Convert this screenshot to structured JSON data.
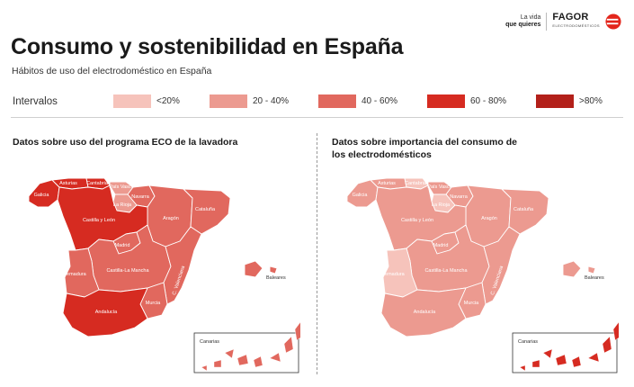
{
  "brand": {
    "tagline_line1": "La vida",
    "tagline_line2": "que quieres",
    "name": "FAGOR",
    "sub": "ELECTRODOMÉSTICOS"
  },
  "header": {
    "title": "Consumo y sostenibilidad en España",
    "subtitle": "Hábitos de uso del electrodoméstico en España"
  },
  "legend": {
    "label": "Intervalos",
    "items": [
      {
        "label": "<20%",
        "color": "#f6c3bb"
      },
      {
        "label": "20 - 40%",
        "color": "#ec9a90"
      },
      {
        "label": "40 - 60%",
        "color": "#e1685e"
      },
      {
        "label": "60 - 80%",
        "color": "#d62b21"
      },
      {
        "label": ">80%",
        "color": "#b3201a"
      }
    ]
  },
  "regions": {
    "galicia": "Galicia",
    "asturias": "Asturias",
    "cantabria": "Cantabria",
    "pais_vasco": "País Vasco",
    "navarra": "Navarra",
    "la_rioja": "La Rioja",
    "aragon": "Aragón",
    "cataluna": "Cataluña",
    "castilla_leon": "Castilla y León",
    "madrid": "Madrid",
    "castilla_la_mancha": "Castilla-La Mancha",
    "extremadura": "Extremadura",
    "c_valenciana": "C. Valenciana",
    "murcia": "Murcia",
    "andalucia": "Andalucía",
    "baleares": "Baleares",
    "canarias": "Canarias"
  },
  "panels": [
    {
      "title_line1": "Datos sobre uso del programa ECO de la lavadora",
      "title_line2": "",
      "colors": {
        "galicia": "#d62b21",
        "asturias": "#d62b21",
        "cantabria": "#d62b21",
        "pais_vasco": "#ec9a90",
        "navarra": "#e1685e",
        "la_rioja": "#ec9a90",
        "aragon": "#e1685e",
        "cataluna": "#e1685e",
        "castilla_leon": "#d62b21",
        "madrid": "#e1685e",
        "castilla_la_mancha": "#e1685e",
        "extremadura": "#e1685e",
        "c_valenciana": "#e1685e",
        "murcia": "#e1685e",
        "andalucia": "#d62b21",
        "baleares": "#e1685e",
        "canarias": "#e1685e"
      }
    },
    {
      "title_line1": "Datos sobre importancia del consumo de",
      "title_line2": "los electrodomésticos",
      "colors": {
        "galicia": "#ec9a90",
        "asturias": "#ec9a90",
        "cantabria": "#f6c3bb",
        "pais_vasco": "#ec9a90",
        "navarra": "#ec9a90",
        "la_rioja": "#f6c3bb",
        "aragon": "#ec9a90",
        "cataluna": "#ec9a90",
        "castilla_leon": "#ec9a90",
        "madrid": "#ec9a90",
        "castilla_la_mancha": "#ec9a90",
        "extremadura": "#f6c3bb",
        "c_valenciana": "#ec9a90",
        "murcia": "#ec9a90",
        "andalucia": "#ec9a90",
        "baleares": "#ec9a90",
        "canarias": "#d62b21"
      }
    }
  ]
}
